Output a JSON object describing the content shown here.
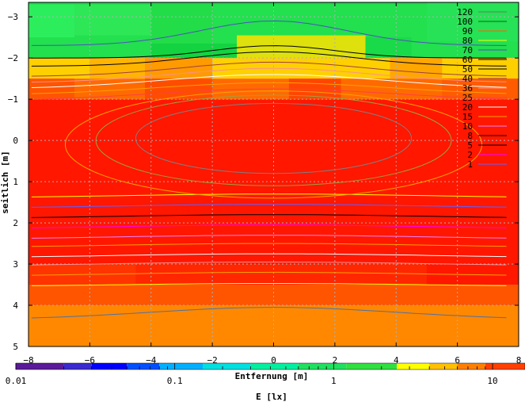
{
  "chart_data": {
    "type": "heatmap",
    "title": "",
    "xlabel": "Entfernung [m]",
    "ylabel": "seitlich [m]",
    "xlim": [
      -8,
      8
    ],
    "ylim": [
      5,
      -3.35
    ],
    "x_ticks": [
      -8,
      -6,
      -4,
      -2,
      0,
      2,
      4,
      6,
      8
    ],
    "y_ticks": [
      -3,
      -2,
      -1,
      0,
      1,
      2,
      3,
      4,
      5
    ],
    "grid": true,
    "colorbar": {
      "label": "E [lx]",
      "scale": "log",
      "range": [
        0.01,
        16
      ],
      "tick_labels": [
        "0.01",
        "0.1",
        "1",
        "10"
      ],
      "tick_values": [
        0.01,
        0.1,
        1,
        10
      ]
    },
    "bands": [
      {
        "y0": -3.35,
        "y1": -2.0,
        "color": "#22e04e"
      },
      {
        "y0": -2.0,
        "y1": -1.5,
        "color": "#ffd000"
      },
      {
        "y0": -1.5,
        "y1": -1.0,
        "color": "#ff6a00"
      },
      {
        "y0": -1.0,
        "y1": 3.5,
        "color": "#ff1700"
      },
      {
        "y0": 3.5,
        "y1": 4.0,
        "color": "#ff5500"
      },
      {
        "y0": 4.0,
        "y1": 5.0,
        "color": "#ff8800"
      }
    ],
    "contour_legend": [
      {
        "label": "120",
        "color": "#558855"
      },
      {
        "label": "100",
        "color": "#007000"
      },
      {
        "label": "90",
        "color": "#ff6000"
      },
      {
        "label": "80",
        "color": "#ffff00"
      },
      {
        "label": "70",
        "color": "#5050c0"
      },
      {
        "label": "60",
        "color": "#000000"
      },
      {
        "label": "50",
        "color": "#000000"
      },
      {
        "label": "40",
        "color": "#a04040"
      },
      {
        "label": "36",
        "color": "#ff9090"
      },
      {
        "label": "25",
        "color": "#ff4040"
      },
      {
        "label": "20",
        "color": "#ffffff"
      },
      {
        "label": "15",
        "color": "#ffa000"
      },
      {
        "label": "10",
        "color": "#ff80ff"
      },
      {
        "label": "8",
        "color": "#000000"
      },
      {
        "label": "5",
        "color": "#000000"
      },
      {
        "label": "2",
        "color": "#ff00ff"
      },
      {
        "label": "1",
        "color": "#6060ff"
      }
    ]
  }
}
